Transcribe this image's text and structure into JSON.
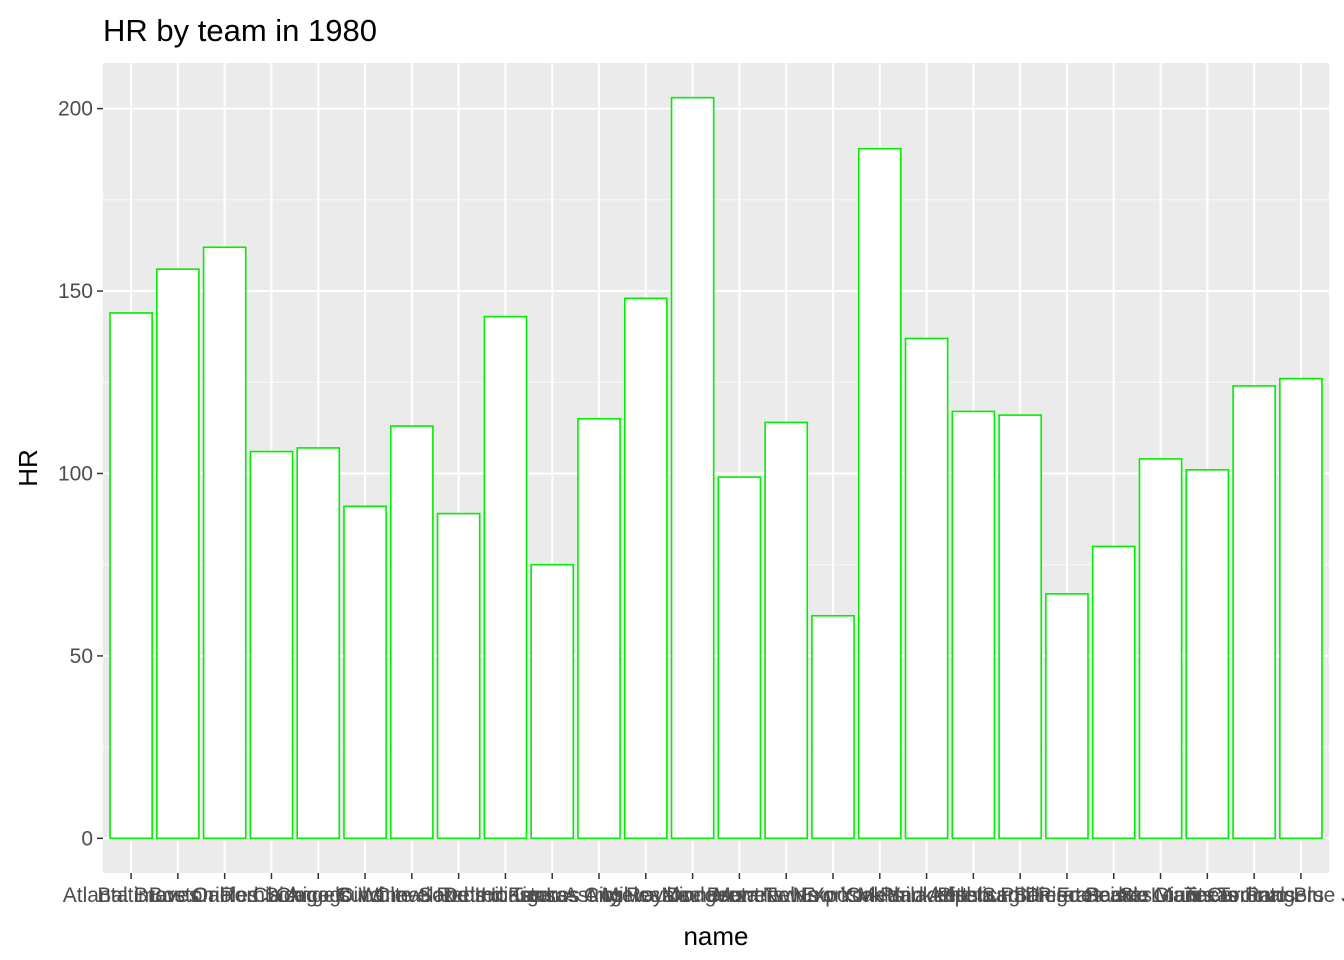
{
  "chart_data": {
    "type": "bar",
    "title": "HR by team in 1980",
    "xlabel": "name",
    "ylabel": "HR",
    "ylim": [
      -9.5,
      212.5
    ],
    "yticks": [
      0,
      50,
      100,
      150,
      200
    ],
    "grid": true,
    "legend": "none",
    "colors": {
      "panel_background": "#ebebeb",
      "gridline": "#ffffff",
      "bar_fill": "#ffffff",
      "bar_outline": "#00ee00",
      "tick_color": "#333333"
    },
    "categories": [
      "Atlanta Braves",
      "Baltimore Orioles",
      "Boston Red Sox",
      "California Angels",
      "Chicago Cubs",
      "Chicago White Sox",
      "Cincinnati Reds",
      "Cleveland Indians",
      "Detroit Tigers",
      "Houston Astros",
      "Kansas City Royals",
      "Los Angeles Dodgers",
      "Milwaukee Brewers",
      "Minnesota Twins",
      "Montreal Expos",
      "New York Mets",
      "New York Yankees",
      "Oakland Athletics",
      "Philadelphia Phillies",
      "Pittsburgh Pirates",
      "San Diego Padres",
      "San Francisco Giants",
      "Seattle Mariners",
      "St. Louis Cardinals",
      "Texas Rangers",
      "Toronto Blue Jays"
    ],
    "values": [
      144,
      156,
      162,
      106,
      107,
      91,
      113,
      89,
      143,
      75,
      115,
      148,
      203,
      99,
      114,
      61,
      189,
      137,
      117,
      116,
      67,
      80,
      104,
      101,
      124,
      126
    ]
  }
}
